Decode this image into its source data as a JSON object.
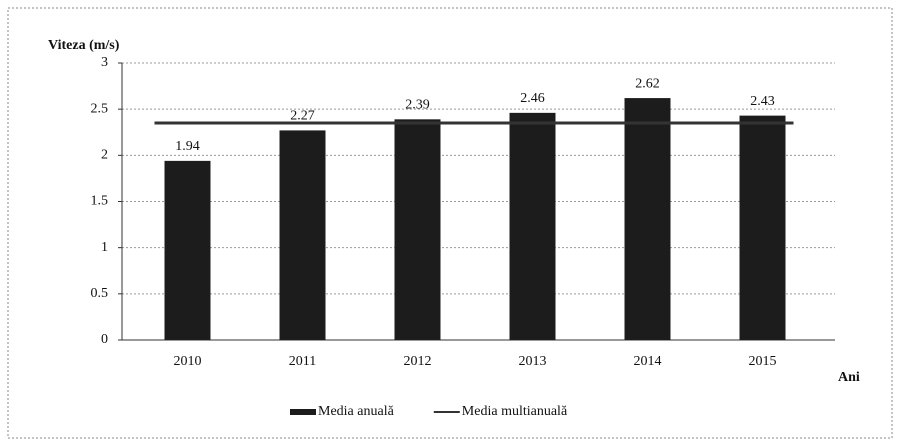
{
  "chart_data": {
    "type": "bar",
    "y_label": "Viteza (m/s)",
    "x_label": "Ani",
    "categories": [
      "2010",
      "2011",
      "2012",
      "2013",
      "2014",
      "2015"
    ],
    "series": [
      {
        "name": "Media anuală",
        "type": "bar",
        "color": "#1c1c1c",
        "values": [
          1.94,
          2.27,
          2.39,
          2.46,
          2.62,
          2.43
        ]
      },
      {
        "name": "Media multianuală",
        "type": "line",
        "color": "#333333",
        "values": [
          2.35,
          2.35,
          2.35,
          2.35,
          2.35,
          2.35
        ]
      }
    ],
    "ylim": [
      0,
      3
    ],
    "yticks": [
      0,
      0.5,
      1,
      1.5,
      2,
      2.5,
      3
    ],
    "grid": true,
    "legend": "bottom"
  }
}
